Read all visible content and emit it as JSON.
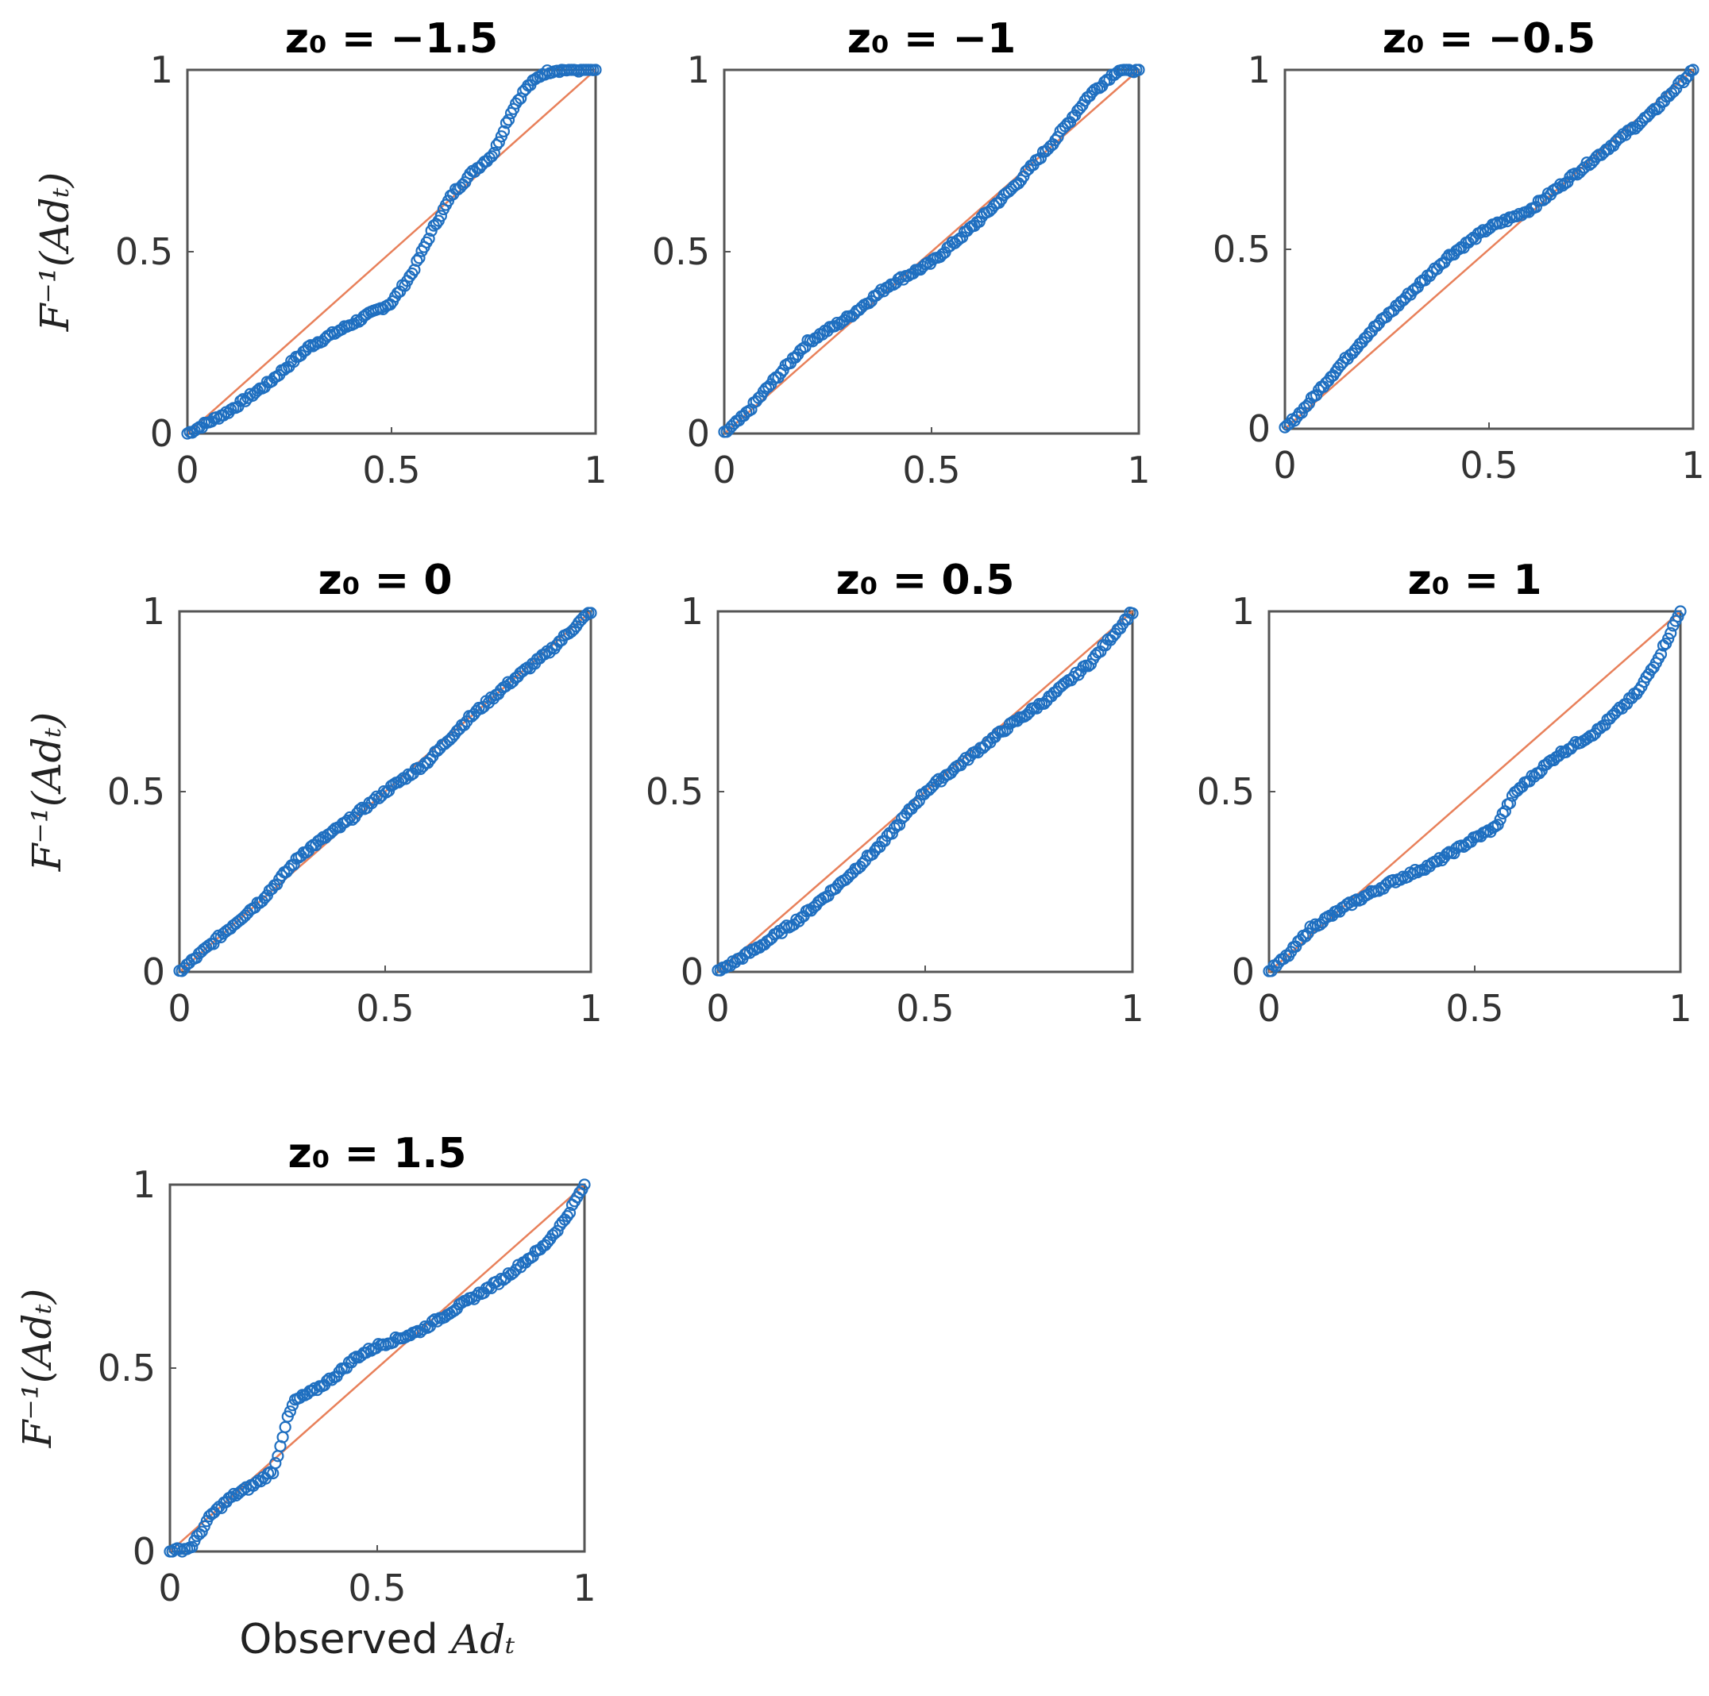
{
  "colors": {
    "points": "#1f6fc0",
    "reference_line": "#e8805a",
    "axes": "#555555"
  },
  "shared": {
    "ylabel": "F⁻¹(Adₜ)",
    "xlabel_prefix": "Observed",
    "xlabel_var": "Adₜ",
    "tick_labels": [
      "0",
      "0.5",
      "1"
    ]
  },
  "chart_data": [
    {
      "type": "scatter",
      "title": "z₀ = −1.5",
      "xlim": [
        0,
        1
      ],
      "ylim": [
        0,
        1
      ],
      "reference_line": true,
      "curve": [
        [
          0,
          0
        ],
        [
          0.1,
          0.06
        ],
        [
          0.2,
          0.14
        ],
        [
          0.3,
          0.24
        ],
        [
          0.4,
          0.3
        ],
        [
          0.5,
          0.36
        ],
        [
          0.55,
          0.44
        ],
        [
          0.6,
          0.56
        ],
        [
          0.65,
          0.66
        ],
        [
          0.7,
          0.72
        ],
        [
          0.75,
          0.77
        ],
        [
          0.78,
          0.85
        ],
        [
          0.8,
          0.9
        ],
        [
          0.83,
          0.95
        ],
        [
          0.87,
          0.99
        ],
        [
          0.9,
          1.0
        ],
        [
          1,
          1.0
        ]
      ]
    },
    {
      "type": "scatter",
      "title": "z₀ = −1",
      "xlim": [
        0,
        1
      ],
      "ylim": [
        0,
        1
      ],
      "reference_line": true,
      "curve": [
        [
          0,
          0
        ],
        [
          0.05,
          0.05
        ],
        [
          0.1,
          0.12
        ],
        [
          0.2,
          0.25
        ],
        [
          0.3,
          0.32
        ],
        [
          0.4,
          0.41
        ],
        [
          0.5,
          0.47
        ],
        [
          0.6,
          0.57
        ],
        [
          0.7,
          0.68
        ],
        [
          0.8,
          0.81
        ],
        [
          0.88,
          0.93
        ],
        [
          0.95,
          1.0
        ],
        [
          1,
          1.0
        ]
      ]
    },
    {
      "type": "scatter",
      "title": "z₀ = −0.5",
      "xlim": [
        0,
        1
      ],
      "ylim": [
        0,
        1
      ],
      "reference_line": true,
      "curve": [
        [
          0,
          0
        ],
        [
          0.05,
          0.06
        ],
        [
          0.1,
          0.13
        ],
        [
          0.2,
          0.26
        ],
        [
          0.3,
          0.37
        ],
        [
          0.4,
          0.48
        ],
        [
          0.5,
          0.56
        ],
        [
          0.6,
          0.61
        ],
        [
          0.7,
          0.7
        ],
        [
          0.8,
          0.79
        ],
        [
          0.9,
          0.88
        ],
        [
          1,
          1.0
        ]
      ]
    },
    {
      "type": "scatter",
      "title": "z₀ = 0",
      "xlim": [
        0,
        1
      ],
      "ylim": [
        0,
        1
      ],
      "reference_line": true,
      "curve": [
        [
          0,
          0
        ],
        [
          0.1,
          0.1
        ],
        [
          0.2,
          0.2
        ],
        [
          0.3,
          0.33
        ],
        [
          0.4,
          0.41
        ],
        [
          0.5,
          0.5
        ],
        [
          0.6,
          0.58
        ],
        [
          0.7,
          0.7
        ],
        [
          0.8,
          0.8
        ],
        [
          0.9,
          0.89
        ],
        [
          1,
          1.0
        ]
      ]
    },
    {
      "type": "scatter",
      "title": "z₀ = 0.5",
      "xlim": [
        0,
        1
      ],
      "ylim": [
        0,
        1
      ],
      "reference_line": true,
      "curve": [
        [
          0,
          0
        ],
        [
          0.1,
          0.07
        ],
        [
          0.2,
          0.15
        ],
        [
          0.3,
          0.25
        ],
        [
          0.4,
          0.36
        ],
        [
          0.5,
          0.5
        ],
        [
          0.6,
          0.59
        ],
        [
          0.7,
          0.68
        ],
        [
          0.8,
          0.76
        ],
        [
          0.9,
          0.86
        ],
        [
          1,
          1.0
        ]
      ]
    },
    {
      "type": "scatter",
      "title": "z₀ = 1",
      "xlim": [
        0,
        1
      ],
      "ylim": [
        0,
        1
      ],
      "reference_line": true,
      "curve": [
        [
          0,
          0
        ],
        [
          0.05,
          0.05
        ],
        [
          0.1,
          0.12
        ],
        [
          0.2,
          0.19
        ],
        [
          0.3,
          0.25
        ],
        [
          0.4,
          0.3
        ],
        [
          0.5,
          0.37
        ],
        [
          0.55,
          0.4
        ],
        [
          0.6,
          0.5
        ],
        [
          0.7,
          0.6
        ],
        [
          0.8,
          0.67
        ],
        [
          0.9,
          0.78
        ],
        [
          0.95,
          0.88
        ],
        [
          1,
          1.0
        ]
      ]
    },
    {
      "type": "scatter",
      "title": "z₀ = 1.5",
      "xlim": [
        0,
        1
      ],
      "ylim": [
        0,
        1
      ],
      "reference_line": true,
      "curve": [
        [
          0,
          0
        ],
        [
          0.05,
          0.01
        ],
        [
          0.1,
          0.1
        ],
        [
          0.15,
          0.15
        ],
        [
          0.2,
          0.18
        ],
        [
          0.25,
          0.22
        ],
        [
          0.28,
          0.35
        ],
        [
          0.3,
          0.41
        ],
        [
          0.35,
          0.44
        ],
        [
          0.4,
          0.48
        ],
        [
          0.45,
          0.53
        ],
        [
          0.5,
          0.56
        ],
        [
          0.6,
          0.6
        ],
        [
          0.7,
          0.67
        ],
        [
          0.8,
          0.74
        ],
        [
          0.9,
          0.83
        ],
        [
          0.95,
          0.9
        ],
        [
          1,
          1.0
        ]
      ]
    }
  ]
}
